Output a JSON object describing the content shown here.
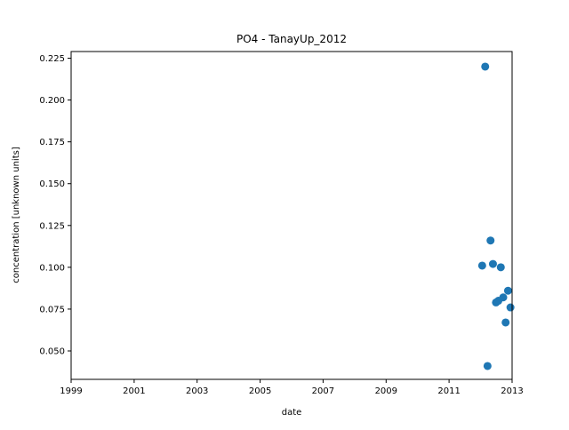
{
  "chart_data": {
    "type": "scatter",
    "title": "PO4 - TanayUp_2012",
    "xlabel": "date",
    "ylabel": "concentration [unknown units]",
    "xlim": [
      "1999-01-01",
      "2013-01-01"
    ],
    "ylim": [
      0.033,
      0.229
    ],
    "x_ticks": [
      "1999",
      "2001",
      "2003",
      "2005",
      "2007",
      "2009",
      "2011",
      "2013"
    ],
    "y_ticks": [
      "0.050",
      "0.075",
      "0.100",
      "0.125",
      "0.150",
      "0.175",
      "0.200",
      "0.225"
    ],
    "grid": false,
    "marker_color": "#1f77b4",
    "points": [
      {
        "x": "2012-01-20",
        "y": 0.101
      },
      {
        "x": "2012-02-24",
        "y": 0.22
      },
      {
        "x": "2012-03-22",
        "y": 0.041
      },
      {
        "x": "2012-04-26",
        "y": 0.116
      },
      {
        "x": "2012-05-24",
        "y": 0.102
      },
      {
        "x": "2012-06-28",
        "y": 0.079
      },
      {
        "x": "2012-07-26",
        "y": 0.08
      },
      {
        "x": "2012-08-23",
        "y": 0.1
      },
      {
        "x": "2012-09-20",
        "y": 0.082
      },
      {
        "x": "2012-10-18",
        "y": 0.067
      },
      {
        "x": "2012-11-15",
        "y": 0.086
      },
      {
        "x": "2012-12-13",
        "y": 0.076
      }
    ]
  }
}
